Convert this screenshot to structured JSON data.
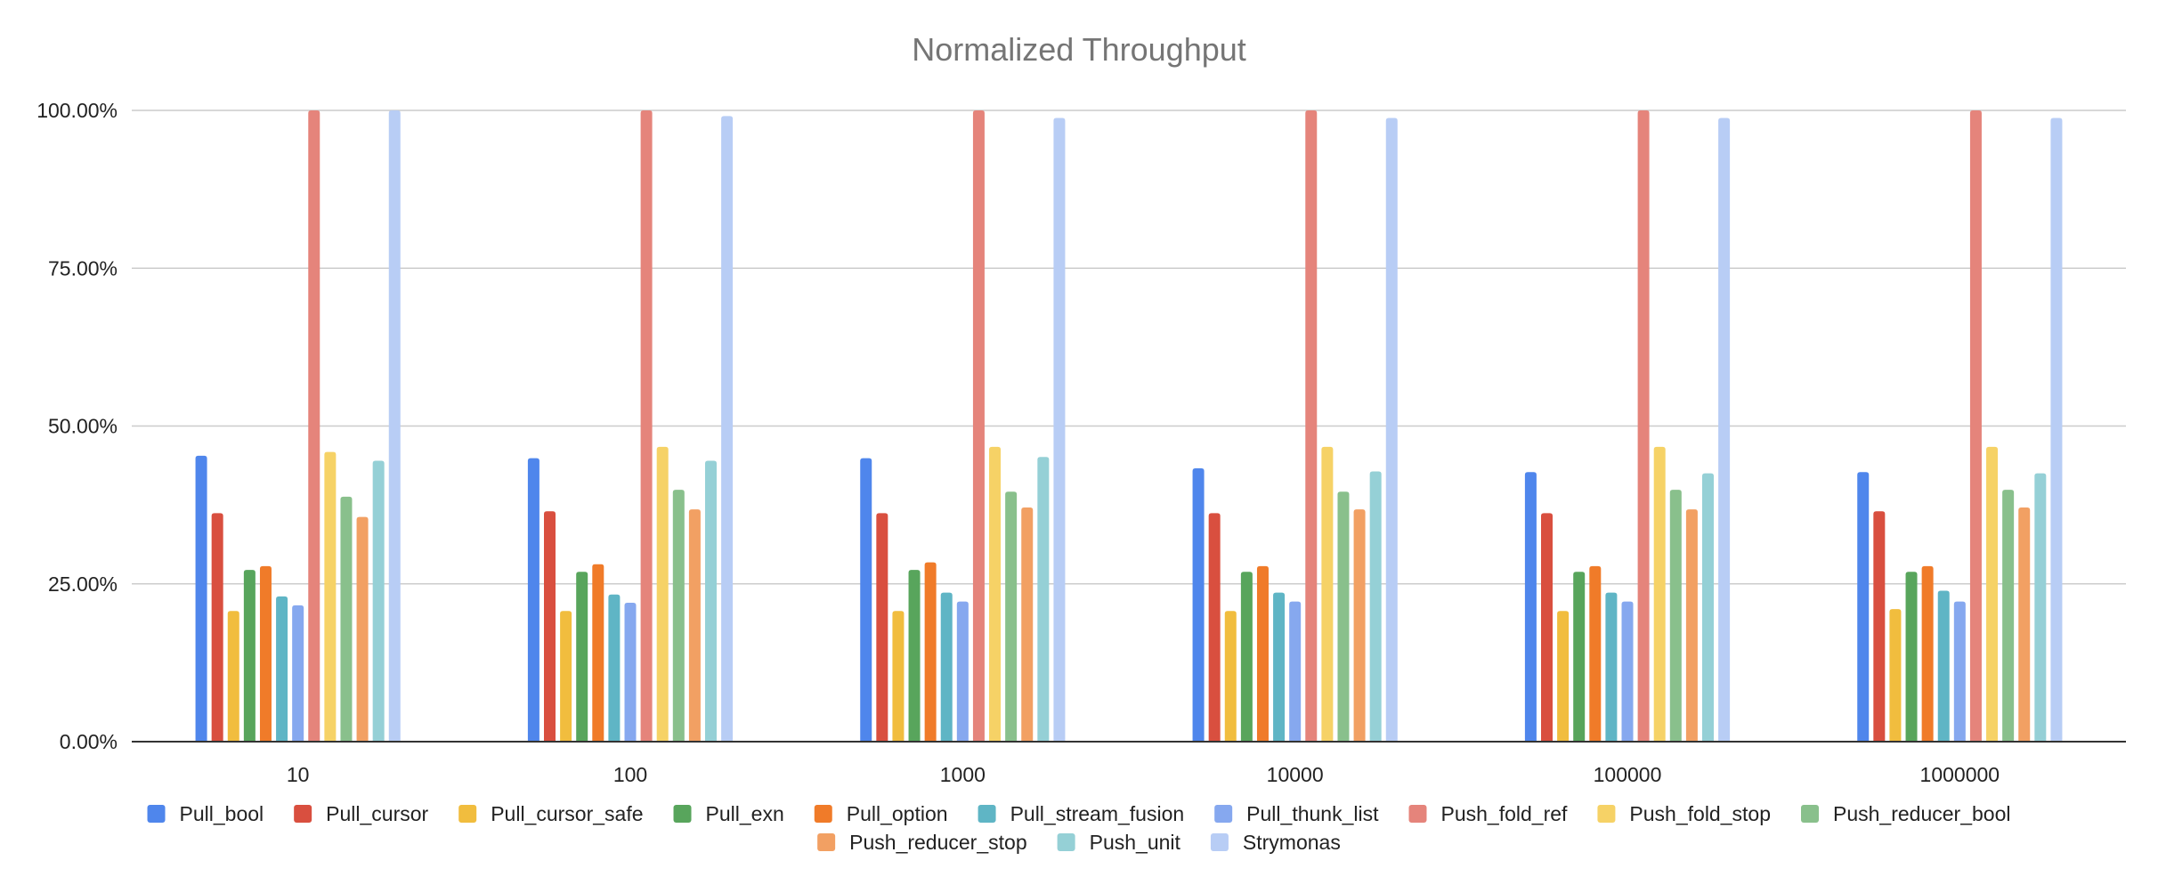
{
  "colors": {
    "Pull_bool": "#4f86ec",
    "Pull_cursor": "#d94f3f",
    "Pull_cursor_safe": "#f1bd3e",
    "Pull_exn": "#58a55c",
    "Pull_option": "#f07b29",
    "Pull_stream_fusion": "#5fb5c5",
    "Pull_thunk_list": "#86a8ef",
    "Push_fold_ref": "#e5847b",
    "Push_fold_stop": "#f6d266",
    "Push_reducer_bool": "#89c08c",
    "Push_reducer_stop": "#f2a063",
    "Push_unit": "#95d0d6",
    "Strymonas": "#b8cdf5",
    "gridline": "#cccccc",
    "axis": "#333333",
    "title": "#757575",
    "text": "#222222"
  },
  "chart_data": {
    "type": "bar",
    "title": "Normalized Throughput",
    "xlabel": "",
    "ylabel": "",
    "ylim": [
      0,
      1
    ],
    "yticks": [
      0,
      0.25,
      0.5,
      0.75,
      1.0
    ],
    "ytick_labels": [
      "0.00%",
      "25.00%",
      "50.00%",
      "75.00%",
      "100.00%"
    ],
    "grid": true,
    "legend_position": "bottom",
    "categories": [
      "10",
      "100",
      "1000",
      "10000",
      "100000",
      "1000000"
    ],
    "series": [
      {
        "name": "Pull_bool",
        "values": [
          0.453,
          0.449,
          0.449,
          0.433,
          0.427,
          0.427
        ]
      },
      {
        "name": "Pull_cursor",
        "values": [
          0.362,
          0.365,
          0.362,
          0.362,
          0.362,
          0.365
        ]
      },
      {
        "name": "Pull_cursor_safe",
        "values": [
          0.207,
          0.207,
          0.207,
          0.207,
          0.207,
          0.21
        ]
      },
      {
        "name": "Pull_exn",
        "values": [
          0.272,
          0.269,
          0.272,
          0.269,
          0.269,
          0.269
        ]
      },
      {
        "name": "Pull_option",
        "values": [
          0.278,
          0.281,
          0.284,
          0.278,
          0.278,
          0.278
        ]
      },
      {
        "name": "Pull_stream_fusion",
        "values": [
          0.23,
          0.233,
          0.236,
          0.236,
          0.236,
          0.239
        ]
      },
      {
        "name": "Pull_thunk_list",
        "values": [
          0.216,
          0.22,
          0.222,
          0.222,
          0.222,
          0.222
        ]
      },
      {
        "name": "Push_fold_ref",
        "values": [
          1.0,
          1.0,
          1.0,
          1.0,
          1.0,
          1.0
        ]
      },
      {
        "name": "Push_fold_stop",
        "values": [
          0.459,
          0.467,
          0.467,
          0.467,
          0.467,
          0.467
        ]
      },
      {
        "name": "Push_reducer_bool",
        "values": [
          0.388,
          0.399,
          0.396,
          0.396,
          0.399,
          0.399
        ]
      },
      {
        "name": "Push_reducer_stop",
        "values": [
          0.356,
          0.368,
          0.371,
          0.368,
          0.368,
          0.371
        ]
      },
      {
        "name": "Push_unit",
        "values": [
          0.445,
          0.445,
          0.451,
          0.428,
          0.425,
          0.425
        ]
      },
      {
        "name": "Strymonas",
        "values": [
          1.0,
          0.991,
          0.988,
          0.988,
          0.988,
          0.988
        ]
      }
    ]
  }
}
